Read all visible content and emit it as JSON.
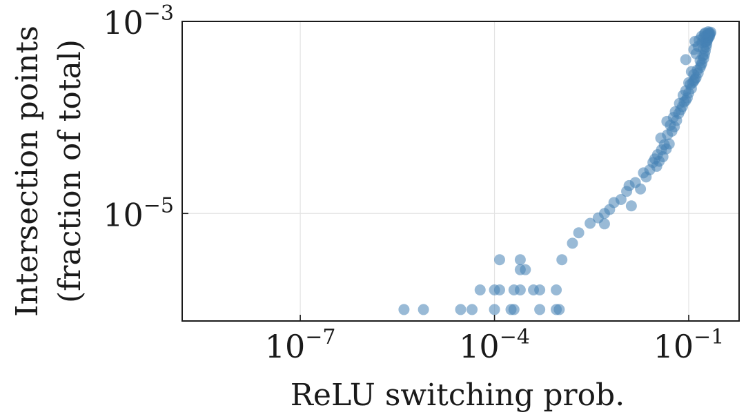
{
  "chart_data": {
    "type": "scatter",
    "xlabel": "ReLU switching prob.",
    "ylabel_lines": [
      "Intersection points",
      "(fraction of total)"
    ],
    "x_scale": "log",
    "y_scale": "log",
    "xlim": [
      1.5e-09,
      0.6
    ],
    "ylim": [
      7.6e-07,
      0.001
    ],
    "x_ticks": [
      {
        "base": "10",
        "exp": "−7",
        "value": 1e-07
      },
      {
        "base": "10",
        "exp": "−4",
        "value": 0.0001
      },
      {
        "base": "10",
        "exp": "−1",
        "value": 0.1
      }
    ],
    "y_ticks": [
      {
        "base": "10",
        "exp": "−5",
        "value": 1e-05
      },
      {
        "base": "10",
        "exp": "−3",
        "value": 0.001
      }
    ],
    "grid": true,
    "marker_color": "#4682b4",
    "marker_alpha": 0.55,
    "points": [
      [
        4e-06,
        1e-06
      ],
      [
        8e-06,
        1e-06
      ],
      [
        3e-05,
        1e-06
      ],
      [
        4.5e-05,
        1e-06
      ],
      [
        0.0001,
        1e-06
      ],
      [
        0.00018,
        1e-06
      ],
      [
        0.0002,
        1e-06
      ],
      [
        0.0005,
        1e-06
      ],
      [
        0.0009,
        1e-06
      ],
      [
        0.001,
        1e-06
      ],
      [
        6e-05,
        1.6e-06
      ],
      [
        0.0001,
        1.6e-06
      ],
      [
        0.00012,
        1.6e-06
      ],
      [
        0.0002,
        1.6e-06
      ],
      [
        0.00025,
        1.6e-06
      ],
      [
        0.0004,
        1.6e-06
      ],
      [
        0.0005,
        1.6e-06
      ],
      [
        0.0009,
        1.6e-06
      ],
      [
        0.00025,
        2.6e-06
      ],
      [
        0.0003,
        2.6e-06
      ],
      [
        0.00012,
        3.3e-06
      ],
      [
        0.00025,
        3.3e-06
      ],
      [
        0.0011,
        3.3e-06
      ],
      [
        0.0016,
        4.9e-06
      ],
      [
        0.002,
        6.3e-06
      ],
      [
        0.003,
        7.9e-06
      ],
      [
        0.004,
        9e-06
      ],
      [
        0.005,
        7.8e-06
      ],
      [
        0.006,
        1.1e-05
      ],
      [
        0.005,
        1e-05
      ],
      [
        0.007,
        1.3e-05
      ],
      [
        0.009,
        1.4e-05
      ],
      [
        0.011,
        1.7e-05
      ],
      [
        0.013,
        1.2e-05
      ],
      [
        0.015,
        2.1e-05
      ],
      [
        0.012,
        1.95e-05
      ],
      [
        0.018,
        1.8e-05
      ],
      [
        0.022,
        2.4e-05
      ],
      [
        0.02,
        2.65e-05
      ],
      [
        0.025,
        2.85e-05
      ],
      [
        0.028,
        3.4e-05
      ],
      [
        0.032,
        3.1e-05
      ],
      [
        0.03,
        3.7e-05
      ],
      [
        0.035,
        3.5e-05
      ],
      [
        0.04,
        3.9e-05
      ],
      [
        0.033,
        4.1e-05
      ],
      [
        0.038,
        4.6e-05
      ],
      [
        0.045,
        4.7e-05
      ],
      [
        0.042,
        5.2e-05
      ],
      [
        0.05,
        5.3e-05
      ],
      [
        0.037,
        6.1e-05
      ],
      [
        0.047,
        6.6e-05
      ],
      [
        0.055,
        7.2e-05
      ],
      [
        0.052,
        8.3e-05
      ],
      [
        0.06,
        8e-05
      ],
      [
        0.046,
        9.1e-05
      ],
      [
        0.065,
        9.3e-05
      ],
      [
        0.058,
        0.0001
      ],
      [
        0.07,
        0.00011
      ],
      [
        0.062,
        0.000115
      ],
      [
        0.075,
        0.00012
      ],
      [
        0.08,
        0.00013
      ],
      [
        0.072,
        0.00014
      ],
      [
        0.085,
        0.000145
      ],
      [
        0.09,
        0.00015
      ],
      [
        0.082,
        0.00017
      ],
      [
        0.095,
        0.00016
      ],
      [
        0.1,
        0.00018
      ],
      [
        0.09,
        0.00019
      ],
      [
        0.11,
        0.0002
      ],
      [
        0.105,
        0.00022
      ],
      [
        0.115,
        0.00023
      ],
      [
        0.12,
        0.00024
      ],
      [
        0.1,
        0.00023
      ],
      [
        0.125,
        0.00025
      ],
      [
        0.13,
        0.00026
      ],
      [
        0.12,
        0.00028
      ],
      [
        0.14,
        0.00029
      ],
      [
        0.135,
        0.00031
      ],
      [
        0.15,
        0.00033
      ],
      [
        0.11,
        0.0003
      ],
      [
        0.155,
        0.00035
      ],
      [
        0.16,
        0.00037
      ],
      [
        0.15,
        0.00039
      ],
      [
        0.17,
        0.00041
      ],
      [
        0.165,
        0.00044
      ],
      [
        0.13,
        0.00046
      ],
      [
        0.175,
        0.00045
      ],
      [
        0.18,
        0.00049
      ],
      [
        0.17,
        0.00052
      ],
      [
        0.185,
        0.00054
      ],
      [
        0.19,
        0.00058
      ],
      [
        0.18,
        0.00061
      ],
      [
        0.195,
        0.00064
      ],
      [
        0.2,
        0.00067
      ],
      [
        0.19,
        0.00062
      ],
      [
        0.205,
        0.0007
      ],
      [
        0.2,
        0.00073
      ],
      [
        0.21,
        0.00074
      ],
      [
        0.205,
        0.00076
      ],
      [
        0.215,
        0.00075
      ],
      [
        0.22,
        0.00077
      ],
      [
        0.21,
        0.0007
      ],
      [
        0.2,
        0.00068
      ],
      [
        0.12,
        0.00051
      ],
      [
        0.09,
        0.0004
      ],
      [
        0.14,
        0.00055
      ],
      [
        0.16,
        0.0006
      ],
      [
        0.145,
        0.00064
      ],
      [
        0.125,
        0.00062
      ],
      [
        0.17,
        0.00068
      ],
      [
        0.158,
        0.0007
      ],
      [
        0.19,
        0.00072
      ],
      [
        0.175,
        0.00074
      ],
      [
        0.18,
        0.00076
      ],
      [
        0.2,
        0.00078
      ]
    ]
  }
}
